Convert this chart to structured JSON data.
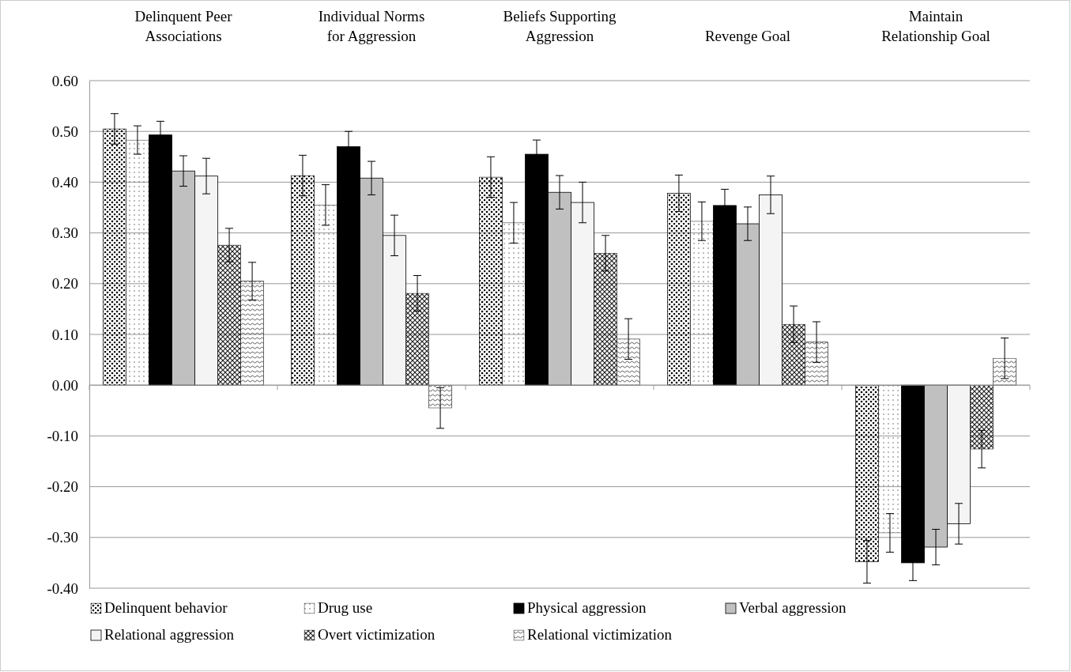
{
  "chart_data": {
    "type": "bar",
    "categories": [
      "Delinquent Peer Associations",
      "Individual Norms for Aggression",
      "Beliefs Supporting Aggression",
      "Revenge Goal",
      "Maintain Relationship Goal"
    ],
    "ylim": [
      -0.4,
      0.6
    ],
    "yticks": [
      {
        "value": -0.4,
        "label": "-0.40"
      },
      {
        "value": -0.3,
        "label": "-0.30"
      },
      {
        "value": -0.2,
        "label": "-0.20"
      },
      {
        "value": -0.1,
        "label": "-0.10"
      },
      {
        "value": 0,
        "label": "0.00"
      },
      {
        "value": 0.1,
        "label": "0.10"
      },
      {
        "value": 0.2,
        "label": "0.20"
      },
      {
        "value": 0.3,
        "label": "0.30"
      },
      {
        "value": 0.4,
        "label": "0.40"
      },
      {
        "value": 0.5,
        "label": "0.50"
      },
      {
        "value": 0.6,
        "label": "0.60"
      }
    ],
    "grid": "y",
    "legend": "bottom",
    "series": [
      {
        "name": "Delinquent behavior",
        "color": "#000000",
        "values": [
          0.505,
          0.413,
          0.41,
          0.378,
          -0.348
        ],
        "errors": [
          0.03,
          0.04,
          0.04,
          0.036,
          0.042
        ]
      },
      {
        "name": "Drug use",
        "color": "#444444",
        "values": [
          0.483,
          0.355,
          0.32,
          0.323,
          -0.291
        ],
        "errors": [
          0.028,
          0.04,
          0.04,
          0.038,
          0.038
        ]
      },
      {
        "name": "Physical aggression",
        "color": "#000000",
        "values": [
          0.493,
          0.47,
          0.455,
          0.354,
          -0.35
        ],
        "errors": [
          0.027,
          0.03,
          0.028,
          0.032,
          0.035
        ]
      },
      {
        "name": "Verbal aggression",
        "color": "#c0c0c0",
        "values": [
          0.422,
          0.408,
          0.38,
          0.318,
          -0.319
        ],
        "errors": [
          0.03,
          0.033,
          0.033,
          0.033,
          0.035
        ]
      },
      {
        "name": "Relational aggression",
        "color": "#f4f4f4",
        "values": [
          0.412,
          0.295,
          0.36,
          0.375,
          -0.273
        ],
        "errors": [
          0.035,
          0.04,
          0.04,
          0.037,
          0.04
        ]
      },
      {
        "name": "Overt victimization",
        "color": "#222222",
        "values": [
          0.276,
          0.181,
          0.26,
          0.12,
          -0.126
        ],
        "errors": [
          0.033,
          0.035,
          0.035,
          0.036,
          0.037
        ]
      },
      {
        "name": "Relational victimization",
        "color": "#333333",
        "values": [
          0.205,
          -0.045,
          0.091,
          0.085,
          0.053
        ],
        "errors": [
          0.037,
          0.04,
          0.04,
          0.04,
          0.04
        ]
      }
    ]
  }
}
